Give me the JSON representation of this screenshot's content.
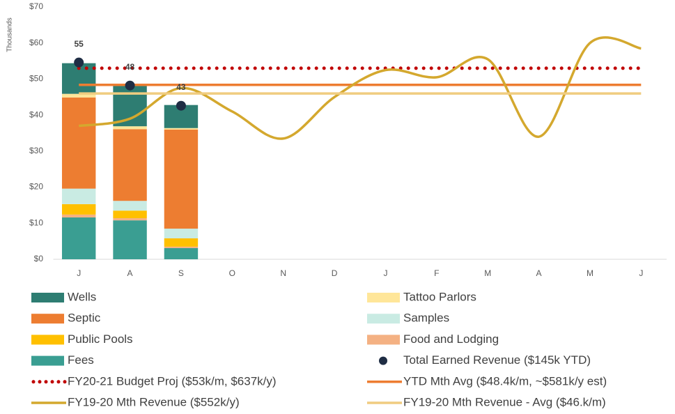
{
  "chart_data": {
    "type": "bar",
    "y_label": "Thousands",
    "categories": [
      "J",
      "A",
      "S",
      "O",
      "N",
      "D",
      "J",
      "F",
      "M",
      "A",
      "M",
      "J"
    ],
    "ylim": [
      0,
      70
    ],
    "yticks": [
      {
        "value": 0,
        "label": "$0"
      },
      {
        "value": 10,
        "label": "$10"
      },
      {
        "value": 20,
        "label": "$20"
      },
      {
        "value": 30,
        "label": "$30"
      },
      {
        "value": 40,
        "label": "$40"
      },
      {
        "value": 50,
        "label": "$50"
      },
      {
        "value": 60,
        "label": "$60"
      },
      {
        "value": 70,
        "label": "$70"
      }
    ],
    "series": [
      {
        "name": "Wells",
        "kind": "bar",
        "color": "#2e7d72",
        "values": [
          8.5,
          11.2,
          6.4,
          null,
          null,
          null,
          null,
          null,
          null,
          null,
          null,
          null
        ]
      },
      {
        "name": "Tattoo Parlors",
        "kind": "bar",
        "color": "#ffe699",
        "values": [
          1.0,
          0.8,
          0.4,
          null,
          null,
          null,
          null,
          null,
          null,
          null,
          null,
          null
        ]
      },
      {
        "name": "Septic",
        "kind": "bar",
        "color": "#ed7d31",
        "values": [
          25.3,
          19.9,
          27.5,
          null,
          null,
          null,
          null,
          null,
          null,
          null,
          null,
          null
        ]
      },
      {
        "name": "Samples",
        "kind": "bar",
        "color": "#c9ebe3",
        "values": [
          4.3,
          2.7,
          2.7,
          null,
          null,
          null,
          null,
          null,
          null,
          null,
          null,
          null
        ]
      },
      {
        "name": "Public Pools",
        "kind": "bar",
        "color": "#ffc000",
        "values": [
          2.9,
          2.1,
          2.3,
          null,
          null,
          null,
          null,
          null,
          null,
          null,
          null,
          null
        ]
      },
      {
        "name": "Food and Lodging",
        "kind": "bar",
        "color": "#f4b183",
        "values": [
          0.8,
          0.6,
          0.4,
          null,
          null,
          null,
          null,
          null,
          null,
          null,
          null,
          null
        ]
      },
      {
        "name": "Fees",
        "kind": "bar",
        "color": "#3a9e92",
        "values": [
          11.6,
          10.8,
          3.1,
          null,
          null,
          null,
          null,
          null,
          null,
          null,
          null,
          null
        ]
      },
      {
        "name": "Total Earned Revenue ($145k YTD)",
        "kind": "scatter",
        "color": "#1f2d44",
        "values": [
          54.6,
          48.2,
          42.6,
          null,
          null,
          null,
          null,
          null,
          null,
          null,
          null,
          null
        ],
        "value_labels": [
          "55",
          "48",
          "43",
          null,
          null,
          null,
          null,
          null,
          null,
          null,
          null,
          null
        ]
      },
      {
        "name": "FY20-21 Budget Proj ($53k/m, $637k/y)",
        "kind": "line",
        "style": "dots",
        "color": "#c00000",
        "values": [
          53,
          53,
          53,
          53,
          53,
          53,
          53,
          53,
          53,
          53,
          53,
          53
        ]
      },
      {
        "name": "YTD Mth Avg ($48.4k/m, ~$581k/y est)",
        "kind": "line",
        "color": "#ed7d31",
        "values": [
          48.4,
          48.4,
          48.4,
          48.4,
          48.4,
          48.4,
          48.4,
          48.4,
          48.4,
          48.4,
          48.4,
          48.4
        ]
      },
      {
        "name": "FY19-20 Mth Revenue ($552k/y)",
        "kind": "line",
        "smooth": true,
        "color": "#d4a82e",
        "values": [
          37,
          39,
          47.5,
          41,
          33.5,
          45,
          52.5,
          50.5,
          55.5,
          34,
          60,
          58.5
        ]
      },
      {
        "name": "FY19-20 Mth Revenue - Avg ($46.k/m)",
        "kind": "line",
        "color": "#f0cc80",
        "values": [
          46,
          46,
          46,
          46,
          46,
          46,
          46,
          46,
          46,
          46,
          46,
          46
        ]
      }
    ]
  }
}
